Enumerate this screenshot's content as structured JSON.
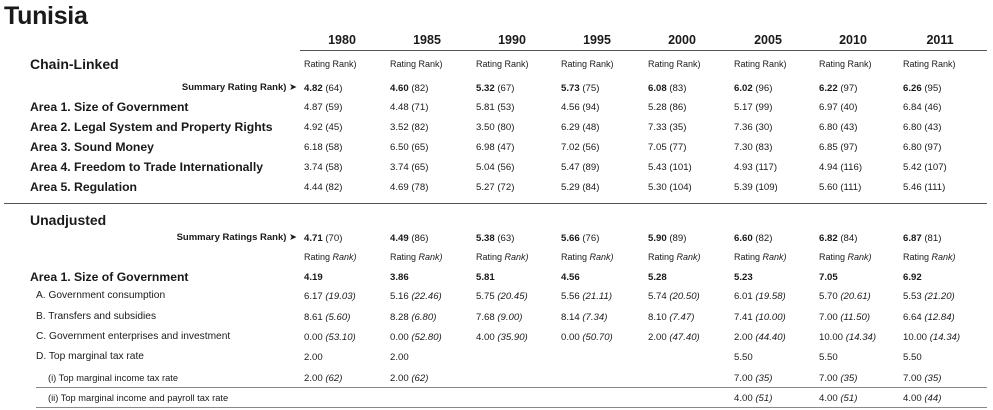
{
  "title": "Tunisia",
  "years": [
    "1980",
    "1985",
    "1990",
    "1995",
    "2000",
    "2005",
    "2010",
    "2011"
  ],
  "rating_header": "Rating",
  "rank_header": "Rank)",
  "chain": {
    "heading": "Chain-Linked",
    "summary_label": "Summary Rating Rank) ➤",
    "summary": [
      [
        "4.82",
        "(64)"
      ],
      [
        "4.60",
        "(82)"
      ],
      [
        "5.32",
        "(67)"
      ],
      [
        "5.73",
        "(75)"
      ],
      [
        "6.08",
        "(83)"
      ],
      [
        "6.02",
        "(96)"
      ],
      [
        "6.22",
        "(97)"
      ],
      [
        "6.26",
        "(95)"
      ]
    ],
    "rows": [
      {
        "label": "Area 1. Size of Government",
        "cells": [
          [
            "4.87",
            "(59)"
          ],
          [
            "4.48",
            "(71)"
          ],
          [
            "5.81",
            "(53)"
          ],
          [
            "4.56",
            "(94)"
          ],
          [
            "5.28",
            "(86)"
          ],
          [
            "5.17",
            "(99)"
          ],
          [
            "6.97",
            "(40)"
          ],
          [
            "6.84",
            "(46)"
          ]
        ]
      },
      {
        "label": "Area 2. Legal System and Property Rights",
        "cells": [
          [
            "4.92",
            "(45)"
          ],
          [
            "3.52",
            "(82)"
          ],
          [
            "3.50",
            "(80)"
          ],
          [
            "6.29",
            "(48)"
          ],
          [
            "7.33",
            "(35)"
          ],
          [
            "7.36",
            "(30)"
          ],
          [
            "6.80",
            "(43)"
          ],
          [
            "6.80",
            "(43)"
          ]
        ]
      },
      {
        "label": "Area 3. Sound Money",
        "cells": [
          [
            "6.18",
            "(58)"
          ],
          [
            "6.50",
            "(65)"
          ],
          [
            "6.98",
            "(47)"
          ],
          [
            "7.02",
            "(56)"
          ],
          [
            "7.05",
            "(77)"
          ],
          [
            "7.30",
            "(83)"
          ],
          [
            "6.85",
            "(97)"
          ],
          [
            "6.80",
            "(97)"
          ]
        ]
      },
      {
        "label": "Area 4. Freedom to Trade Internationally",
        "cells": [
          [
            "3.74",
            "(58)"
          ],
          [
            "3.74",
            "(65)"
          ],
          [
            "5.04",
            "(56)"
          ],
          [
            "5.47",
            "(89)"
          ],
          [
            "5.43",
            "(101)"
          ],
          [
            "4.93",
            "(117)"
          ],
          [
            "4.94",
            "(116)"
          ],
          [
            "5.42",
            "(107)"
          ]
        ]
      },
      {
        "label": "Area 5. Regulation",
        "cells": [
          [
            "4.44",
            "(82)"
          ],
          [
            "4.69",
            "(78)"
          ],
          [
            "5.27",
            "(72)"
          ],
          [
            "5.29",
            "(84)"
          ],
          [
            "5.30",
            "(104)"
          ],
          [
            "5.39",
            "(109)"
          ],
          [
            "5.60",
            "(111)"
          ],
          [
            "5.46",
            "(111)"
          ]
        ]
      }
    ]
  },
  "unadj": {
    "heading": "Unadjusted",
    "summary_label": "Summary Ratings Rank) ➤",
    "summary": [
      [
        "4.71",
        "(70)"
      ],
      [
        "4.49",
        "(86)"
      ],
      [
        "5.38",
        "(63)"
      ],
      [
        "5.66",
        "(76)"
      ],
      [
        "5.90",
        "(89)"
      ],
      [
        "6.60",
        "(82)"
      ],
      [
        "6.82",
        "(84)"
      ],
      [
        "6.87",
        "(81)"
      ]
    ],
    "area1_label": "Area 1. Size of Government",
    "area1": [
      "4.19",
      "3.86",
      "5.81",
      "4.56",
      "5.28",
      "5.23",
      "7.05",
      "6.92"
    ],
    "rows": [
      {
        "label": "A. Government consumption",
        "cells": [
          [
            "6.17",
            "(19.03)"
          ],
          [
            "5.16",
            "(22.46)"
          ],
          [
            "5.75",
            "(20.45)"
          ],
          [
            "5.56",
            "(21.11)"
          ],
          [
            "5.74",
            "(20.50)"
          ],
          [
            "6.01",
            "(19.58)"
          ],
          [
            "5.70",
            "(20.61)"
          ],
          [
            "5.53",
            "(21.20)"
          ]
        ]
      },
      {
        "label": "B. Transfers and subsidies",
        "cells": [
          [
            "8.61",
            "(5.60)"
          ],
          [
            "8.28",
            "(6.80)"
          ],
          [
            "7.68",
            "(9.00)"
          ],
          [
            "8.14",
            "(7.34)"
          ],
          [
            "8.10",
            "(7.47)"
          ],
          [
            "7.41",
            "(10.00)"
          ],
          [
            "7.00",
            "(11.50)"
          ],
          [
            "6.64",
            "(12.84)"
          ]
        ]
      },
      {
        "label": "C. Government enterprises and investment",
        "cells": [
          [
            "0.00",
            "(53.10)"
          ],
          [
            "0.00",
            "(52.80)"
          ],
          [
            "4.00",
            "(35.90)"
          ],
          [
            "0.00",
            "(50.70)"
          ],
          [
            "2.00",
            "(47.40)"
          ],
          [
            "2.00",
            "(44.40)"
          ],
          [
            "10.00",
            "(14.34)"
          ],
          [
            "10.00",
            "(14.34)"
          ]
        ]
      },
      {
        "label": "D. Top marginal tax rate",
        "cells": [
          [
            "2.00",
            ""
          ],
          [
            "2.00",
            ""
          ],
          [
            "",
            ""
          ],
          [
            "",
            ""
          ],
          [
            "",
            ""
          ],
          [
            "5.50",
            ""
          ],
          [
            "5.50",
            ""
          ],
          [
            "5.50",
            ""
          ]
        ]
      }
    ],
    "subrows": [
      {
        "label": "(i) Top marginal income tax rate",
        "cells": [
          [
            "2.00",
            "(62)"
          ],
          [
            "2.00",
            "(62)"
          ],
          [
            "",
            ""
          ],
          [
            "",
            ""
          ],
          [
            "",
            ""
          ],
          [
            "7.00",
            "(35)"
          ],
          [
            "7.00",
            "(35)"
          ],
          [
            "7.00",
            "(35)"
          ]
        ]
      },
      {
        "label": "(ii) Top marginal income and payroll tax rate",
        "cells": [
          [
            "",
            ""
          ],
          [
            "",
            ""
          ],
          [
            "",
            ""
          ],
          [
            "",
            ""
          ],
          [
            "",
            ""
          ],
          [
            "4.00",
            "(51)"
          ],
          [
            "4.00",
            "(51)"
          ],
          [
            "4.00",
            "(44)"
          ]
        ]
      }
    ]
  }
}
